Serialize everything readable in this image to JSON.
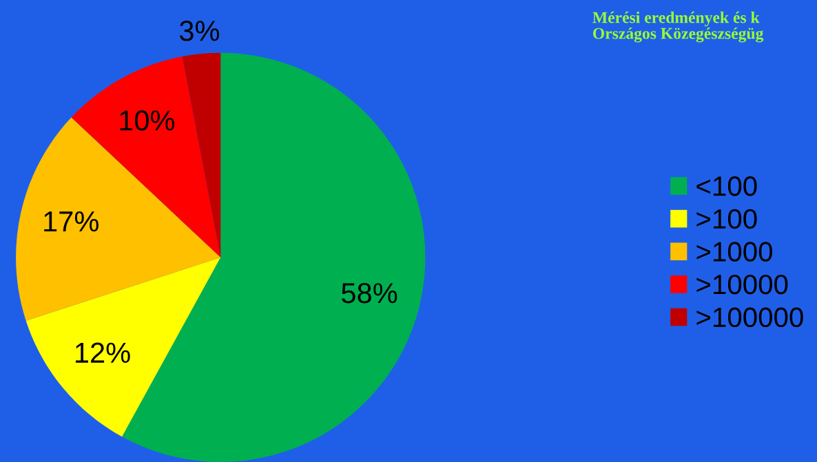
{
  "chart_data": {
    "type": "pie",
    "title": "Mérési eredmények és k\nOrszágos Közegészségüg",
    "categories": [
      "<100",
      ">100",
      ">1000",
      ">10000",
      ">100000"
    ],
    "values": [
      58,
      12,
      17,
      10,
      3
    ],
    "colors": [
      "#00b050",
      "#ffff00",
      "#ffc000",
      "#ff0000",
      "#c00000"
    ],
    "value_labels": [
      "58%",
      "12%",
      "17%",
      "10%",
      "3%"
    ],
    "legend": "right"
  }
}
